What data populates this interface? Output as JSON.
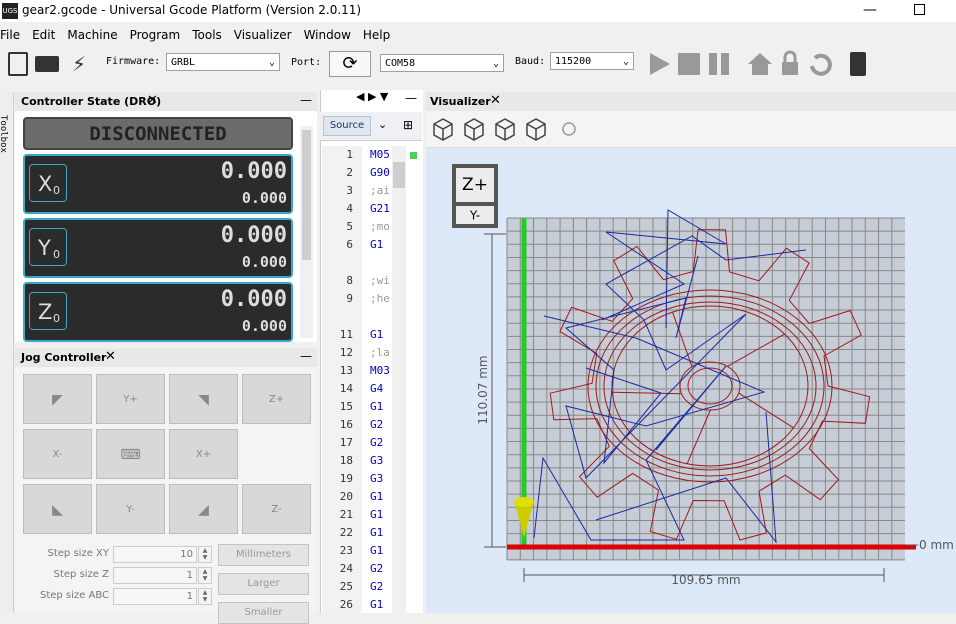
{
  "window": {
    "icon": "UGS",
    "title": "gear2.gcode - Universal Gcode Platform (Version 2.0.11)"
  },
  "menu": [
    "File",
    "Edit",
    "Machine",
    "Program",
    "Tools",
    "Visualizer",
    "Window",
    "Help"
  ],
  "toolbar": {
    "firmware_label": "Firmware:",
    "firmware": "GRBL",
    "port_label": "Port:",
    "port": "COM58",
    "baud_label": "Baud:",
    "baud": "115200"
  },
  "toolbox": "Toolbox",
  "dro": {
    "title": "Controller State (DRO)",
    "status": "DISCONNECTED",
    "axes": [
      {
        "axis": "X",
        "sub": "0",
        "work": "0.000",
        "machine": "0.000"
      },
      {
        "axis": "Y",
        "sub": "0",
        "work": "0.000",
        "machine": "0.000"
      },
      {
        "axis": "Z",
        "sub": "0",
        "work": "0.000",
        "machine": "0.000"
      }
    ]
  },
  "jog": {
    "title": "Jog Controller",
    "y_plus": "Y+",
    "x_minus": "X-",
    "x_plus": "X+",
    "z_plus": "Z+",
    "y_minus": "Y-",
    "z_minus": "Z-",
    "steps": [
      {
        "label": "Step size XY",
        "value": "10"
      },
      {
        "label": "Step size Z",
        "value": "1"
      },
      {
        "label": "Step size ABC",
        "value": "1"
      }
    ],
    "unit_buttons": [
      "Millimeters",
      "Larger",
      "Smaller"
    ]
  },
  "editor": {
    "tab": "Source",
    "lines": [
      {
        "n": "1",
        "code": "M05"
      },
      {
        "n": "2",
        "code": "G90"
      },
      {
        "n": "3",
        "code": ";ai"
      },
      {
        "n": "4",
        "code": "G21"
      },
      {
        "n": "5",
        "code": ";mo"
      },
      {
        "n": "6",
        "code": "G1"
      },
      null,
      {
        "n": "8",
        "code": ";wi"
      },
      {
        "n": "9",
        "code": ";he"
      },
      null,
      {
        "n": "11",
        "code": "G1"
      },
      {
        "n": "12",
        "code": ";la"
      },
      {
        "n": "13",
        "code": "M03"
      },
      {
        "n": "14",
        "code": "G4"
      },
      {
        "n": "15",
        "code": "G1"
      },
      {
        "n": "16",
        "code": "G2"
      },
      {
        "n": "17",
        "code": "G2"
      },
      {
        "n": "18",
        "code": "G3"
      },
      {
        "n": "19",
        "code": "G3"
      },
      {
        "n": "20",
        "code": "G1"
      },
      {
        "n": "21",
        "code": "G1"
      },
      {
        "n": "22",
        "code": "G1"
      },
      {
        "n": "23",
        "code": "G1"
      },
      {
        "n": "24",
        "code": "G2"
      },
      {
        "n": "25",
        "code": "G2"
      },
      {
        "n": "26",
        "code": "G1"
      }
    ]
  },
  "visualizer": {
    "title": "Visualizer",
    "z_plus": "Z+",
    "y_minus": "Y-",
    "height": "110.07 mm",
    "width": "109.65 mm",
    "origin": "0 mm"
  }
}
